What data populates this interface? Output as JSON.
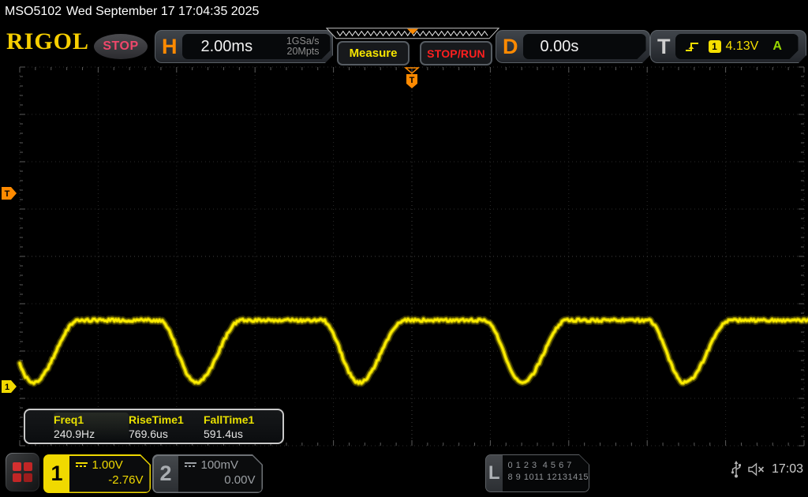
{
  "topbar": {
    "model": "MSO5102",
    "datetime": "Wed September 17 17:04:35 2025"
  },
  "header": {
    "brand": "RIGOL",
    "acq_status": "STOP",
    "horizontal": {
      "label": "H",
      "timebase": "2.00ms",
      "sample_rate": "1GSa/s",
      "mem_depth": "20Mpts"
    },
    "measure_button": "Measure",
    "stoprun_button": "STOP/RUN",
    "delay": {
      "label": "D",
      "value": "0.00s"
    },
    "trigger": {
      "label": "T",
      "slope_icon": "rising-edge-icon",
      "source_channel": "1",
      "level": "4.13V",
      "mode": "A"
    }
  },
  "display": {
    "trigger_position_marker": "T",
    "trigger_level_marker": "T",
    "channel1_marker": "1",
    "measurements": {
      "items": [
        {
          "label": "Freq1",
          "value": "240.9Hz"
        },
        {
          "label": "RiseTime1",
          "value": "769.6us"
        },
        {
          "label": "FallTime1",
          "value": "591.4us"
        }
      ]
    }
  },
  "chart_data": {
    "type": "line",
    "title": "CH1 oscilloscope trace",
    "series": [
      {
        "name": "CH1",
        "color": "#ffee00"
      }
    ],
    "timebase_ms_per_div": 2.0,
    "volts_per_div": 1.0,
    "grid": {
      "cols": 10,
      "rows": 8,
      "style": "dotted"
    },
    "waveform": {
      "shape": "flat-top pulse train with rounded dips",
      "frequency_hz": 240.9,
      "period_div": 2.077,
      "valley_centers_div": [
        0.171,
        2.248,
        4.325,
        6.402,
        8.479,
        10.556
      ],
      "plateau_y_div": 5.35,
      "valley_y_div": 6.67,
      "dip_halfwidth_left_div": 0.47,
      "dip_halfwidth_right_div": 0.58,
      "ground_marker_y_div": 6.75,
      "trigger_level_y_div": 2.667,
      "trigger_x_div": 5.0
    }
  },
  "footer": {
    "channels": [
      {
        "id": "1",
        "scale": "1.00V",
        "offset": "-2.76V",
        "coupling": "dc-coupling-icon",
        "active": true
      },
      {
        "id": "2",
        "scale": "100mV",
        "offset": "0.00V",
        "coupling": "dc-coupling-icon",
        "active": false
      }
    ],
    "digital": {
      "label": "L",
      "row1": "0 1 2 3  4 5 6 7",
      "row2": "8 9 1011 12131415"
    },
    "status": {
      "usb_icon": "usb-icon",
      "muted_icon": "speaker-muted-icon",
      "time": "17:03"
    }
  },
  "colors": {
    "trace": "#ffee00",
    "channel1": "#f0d900",
    "channel2": "#9b9fa3",
    "orange": "#ff8a00",
    "stop_pink": "#ef476b",
    "run_red": "#ff1f1f",
    "trigger_green": "#97d700",
    "grid_line": "#2b2b2b",
    "grid_center": "#424242",
    "tick": "#5a5a5a"
  }
}
